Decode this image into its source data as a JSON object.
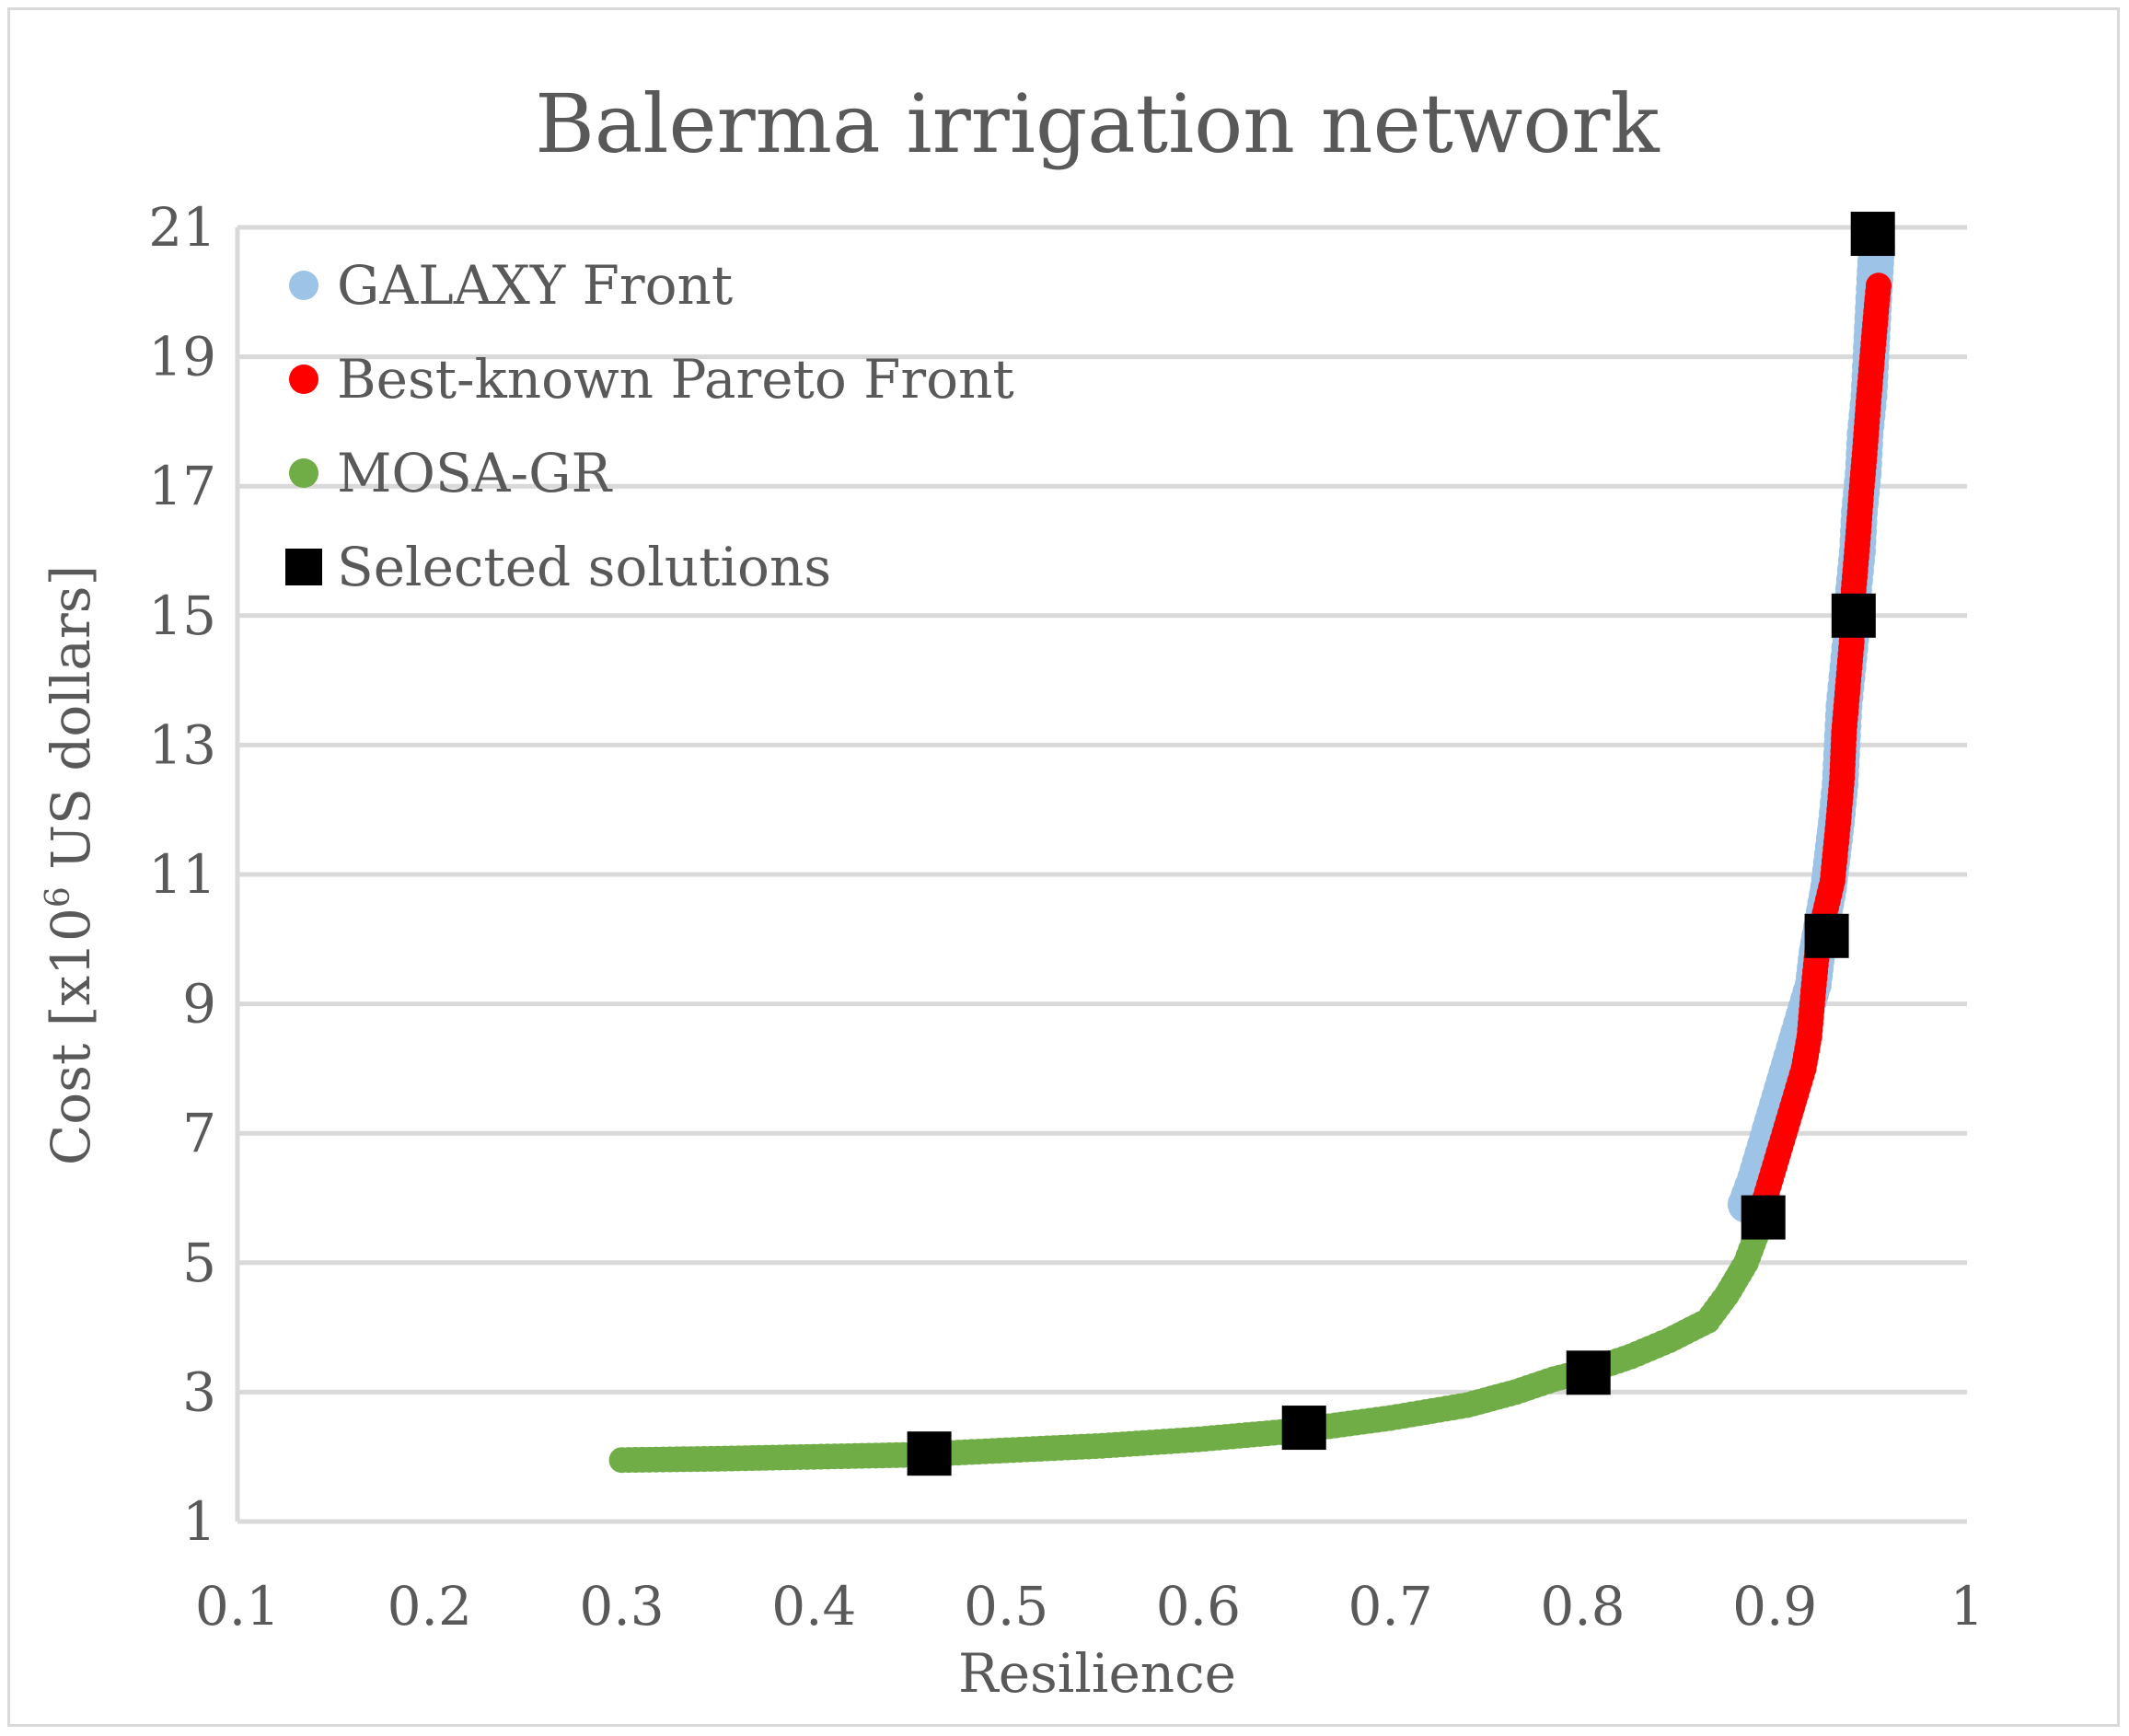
{
  "chart_data": {
    "type": "scatter",
    "title": "Balerma irrigation network",
    "xlabel": "Resilience",
    "ylabel": "Cost [x10",
    "ylabel_sup": "6",
    "ylabel_rest": " US dollars]",
    "xlim": [
      0.1,
      1.0
    ],
    "ylim": [
      1,
      21
    ],
    "xticks": [
      0.1,
      0.2,
      0.3,
      0.4,
      0.5,
      0.6,
      0.7,
      0.8,
      0.9,
      1.0
    ],
    "xtick_labels": [
      "0.1",
      "0.2",
      "0.3",
      "0.4",
      "0.5",
      "0.6",
      "0.7",
      "0.8",
      "0.9",
      "1"
    ],
    "yticks": [
      1,
      3,
      5,
      7,
      9,
      11,
      13,
      15,
      17,
      19,
      21
    ],
    "ytick_labels": [
      "1",
      "3",
      "5",
      "7",
      "9",
      "11",
      "13",
      "15",
      "17",
      "19",
      "21"
    ],
    "grid": "horizontal",
    "legend_position": "top-left",
    "series": [
      {
        "name": "GALAXY Front",
        "marker": "circle",
        "color": "#9dc3e6",
        "points": [
          [
            0.885,
            5.9
          ],
          [
            0.89,
            6.3
          ],
          [
            0.895,
            6.8
          ],
          [
            0.9,
            7.3
          ],
          [
            0.905,
            7.8
          ],
          [
            0.91,
            8.3
          ],
          [
            0.915,
            8.8
          ],
          [
            0.92,
            9.3
          ],
          [
            0.922,
            9.8
          ],
          [
            0.925,
            10.3
          ],
          [
            0.928,
            10.8
          ],
          [
            0.93,
            11.3
          ],
          [
            0.932,
            11.8
          ],
          [
            0.934,
            12.4
          ],
          [
            0.935,
            13.0
          ],
          [
            0.936,
            13.6
          ],
          [
            0.938,
            14.2
          ],
          [
            0.94,
            14.8
          ],
          [
            0.941,
            15.4
          ],
          [
            0.943,
            16.0
          ],
          [
            0.944,
            16.6
          ],
          [
            0.946,
            17.2
          ],
          [
            0.947,
            17.8
          ],
          [
            0.949,
            18.4
          ],
          [
            0.95,
            19.0
          ],
          [
            0.951,
            19.6
          ],
          [
            0.952,
            20.2
          ],
          [
            0.953,
            20.7
          ]
        ]
      },
      {
        "name": "Best-known Pareto Front",
        "marker": "circle",
        "color": "#ff0000",
        "points": [
          [
            0.895,
            6.0
          ],
          [
            0.9,
            6.5
          ],
          [
            0.905,
            7.0
          ],
          [
            0.91,
            7.5
          ],
          [
            0.915,
            8.0
          ],
          [
            0.918,
            8.5
          ],
          [
            0.92,
            9.2
          ],
          [
            0.922,
            9.8
          ],
          [
            0.926,
            10.4
          ],
          [
            0.93,
            10.9
          ],
          [
            0.933,
            11.8
          ],
          [
            0.935,
            12.5
          ],
          [
            0.936,
            13.2
          ],
          [
            0.938,
            13.9
          ],
          [
            0.94,
            14.6
          ],
          [
            0.941,
            15.4
          ],
          [
            0.943,
            16.1
          ],
          [
            0.945,
            16.9
          ],
          [
            0.947,
            17.6
          ],
          [
            0.949,
            18.4
          ],
          [
            0.951,
            19.1
          ],
          [
            0.953,
            19.8
          ],
          [
            0.954,
            20.1
          ]
        ]
      },
      {
        "name": "MOSA-GR",
        "marker": "circle",
        "color": "#70ad47",
        "points": [
          [
            0.3,
            1.95
          ],
          [
            0.35,
            1.97
          ],
          [
            0.4,
            2.0
          ],
          [
            0.45,
            2.03
          ],
          [
            0.5,
            2.1
          ],
          [
            0.55,
            2.17
          ],
          [
            0.6,
            2.27
          ],
          [
            0.65,
            2.4
          ],
          [
            0.7,
            2.6
          ],
          [
            0.74,
            2.8
          ],
          [
            0.765,
            3.0
          ],
          [
            0.785,
            3.2
          ],
          [
            0.805,
            3.35
          ],
          [
            0.825,
            3.55
          ],
          [
            0.845,
            3.8
          ],
          [
            0.865,
            4.1
          ],
          [
            0.875,
            4.5
          ],
          [
            0.885,
            5.0
          ],
          [
            0.89,
            5.4
          ],
          [
            0.895,
            5.7
          ]
        ]
      },
      {
        "name": "Selected solutions",
        "marker": "square",
        "color": "#000000",
        "points": [
          [
            0.46,
            2.05
          ],
          [
            0.655,
            2.45
          ],
          [
            0.803,
            3.3
          ],
          [
            0.894,
            5.7
          ],
          [
            0.927,
            10.05
          ],
          [
            0.941,
            15.0
          ],
          [
            0.951,
            20.9
          ]
        ]
      }
    ]
  }
}
